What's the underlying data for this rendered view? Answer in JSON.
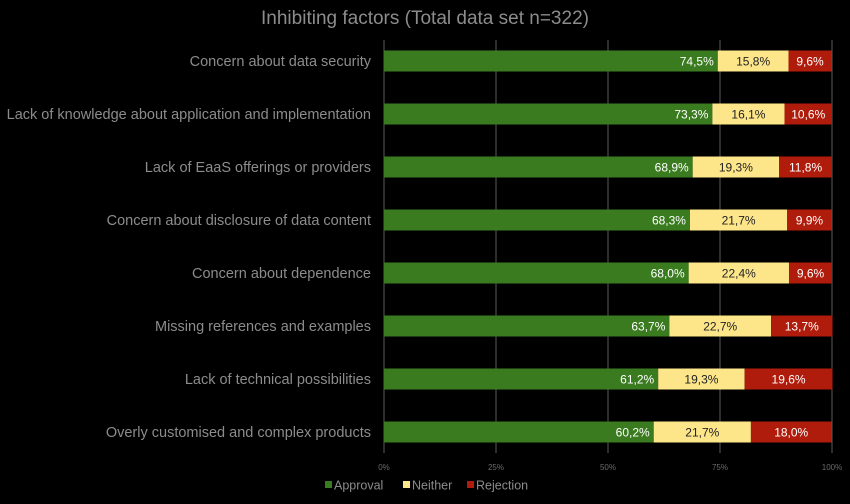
{
  "chart_data": {
    "type": "bar",
    "orientation": "horizontal",
    "stacked": true,
    "percent_stacked": true,
    "title": "Inhibiting factors (Total data set n=322)",
    "categories": [
      "Concern about data security",
      "Lack of knowledge about application and implementation",
      "Lack of EaaS offerings or providers",
      "Concern about disclosure of data content",
      "Concern about dependence",
      "Missing references and examples",
      "Lack of technical possibilities",
      "Overly customised and complex products"
    ],
    "series": [
      {
        "name": "Approval",
        "color": "#3a7b1f",
        "values": [
          74.5,
          73.3,
          68.9,
          68.3,
          68.0,
          63.7,
          61.2,
          60.2
        ],
        "labels": [
          "74,5%",
          "73,3%",
          "68,9%",
          "68,3%",
          "68,0%",
          "63,7%",
          "61,2%",
          "60,2%"
        ]
      },
      {
        "name": "Neither",
        "color": "#fde68a",
        "values": [
          15.8,
          16.1,
          19.3,
          21.7,
          22.4,
          22.7,
          19.3,
          21.7
        ],
        "labels": [
          "15,8%",
          "16,1%",
          "19,3%",
          "21,7%",
          "22,4%",
          "22,7%",
          "19,3%",
          "21,7%"
        ]
      },
      {
        "name": "Rejection",
        "color": "#b01c0c",
        "values": [
          9.6,
          10.6,
          11.8,
          9.9,
          9.6,
          13.7,
          19.6,
          18.0
        ],
        "labels": [
          "9,6%",
          "10,6%",
          "11,8%",
          "9,9%",
          "9,6%",
          "13,7%",
          "19,6%",
          "18,0%"
        ]
      }
    ],
    "xticks": [
      "0%",
      "25%",
      "50%",
      "75%",
      "100%"
    ],
    "xlim": [
      0,
      100
    ],
    "grid": true,
    "legend_position": "bottom"
  }
}
